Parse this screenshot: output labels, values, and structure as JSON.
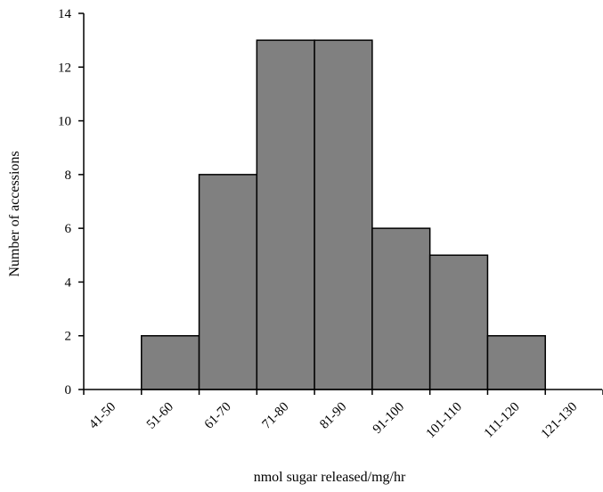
{
  "chart_data": {
    "type": "bar",
    "title": "",
    "xlabel": "nmol sugar released/mg/hr",
    "ylabel": "Number  of accessions",
    "categories": [
      "41-50",
      "51-60",
      "61-70",
      "71-80",
      "81-90",
      "91-100",
      "101-110",
      "111-120",
      "121-130"
    ],
    "values": [
      0,
      2,
      8,
      13,
      13,
      6,
      5,
      2,
      0
    ],
    "ylim": [
      0,
      14
    ],
    "yticks": [
      0,
      2,
      4,
      6,
      8,
      10,
      12,
      14
    ],
    "grid": false,
    "bar_gap": 0,
    "colors": {
      "bar_fill": "#808080",
      "bar_stroke": "#000000",
      "axis": "#000000"
    }
  }
}
